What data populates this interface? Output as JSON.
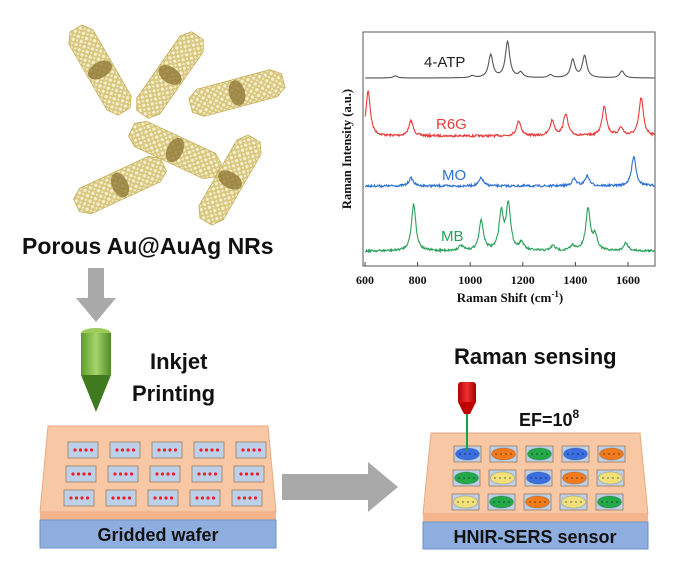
{
  "nanorods": {
    "label": "Porous Au@AuAg NRs"
  },
  "printing": {
    "label_line1": "Inkjet",
    "label_line2": "Printing"
  },
  "left_wafer": {
    "label": "Gridded wafer",
    "rows": 3,
    "cols": 5,
    "dot_color": "#e8202a"
  },
  "right_wafer": {
    "label": "HNIR-SERS sensor",
    "title": "Raman sensing",
    "ef_base": "EF=10",
    "ef_exp": "8",
    "cells": [
      [
        "blue",
        "orange",
        "green",
        "blue",
        "orange"
      ],
      [
        "green",
        "yellow",
        "blue",
        "orange",
        "yellow"
      ],
      [
        "yellow",
        "green",
        "orange",
        "yellow",
        "green"
      ]
    ],
    "colors": {
      "blue": "#3b6fe0",
      "orange": "#f07a1c",
      "green": "#23a84a",
      "yellow": "#f2e07a"
    }
  },
  "chart_data": {
    "type": "line",
    "xlabel": "Raman Shift (cm",
    "xlabel_sup": "-1",
    "xlabel_end": ")",
    "ylabel": "Raman Intensity (a.u.)",
    "xlim": [
      600,
      1700
    ],
    "xticks": [
      "600",
      "800",
      "1000",
      "1200",
      "1400",
      "1600"
    ],
    "grid": false,
    "series": [
      {
        "name": "4-ATP",
        "color": "#555555",
        "baseline": 0,
        "peaks": [
          [
            715,
            2
          ],
          [
            1008,
            2
          ],
          [
            1078,
            23
          ],
          [
            1142,
            36
          ],
          [
            1192,
            5
          ],
          [
            1305,
            3
          ],
          [
            1390,
            18
          ],
          [
            1435,
            22
          ],
          [
            1577,
            7
          ]
        ]
      },
      {
        "name": "R6G",
        "color": "#e83a3a",
        "baseline": 0,
        "peaks": [
          [
            612,
            45
          ],
          [
            775,
            15
          ],
          [
            1185,
            15
          ],
          [
            1312,
            15
          ],
          [
            1363,
            22
          ],
          [
            1510,
            30
          ],
          [
            1573,
            8
          ],
          [
            1650,
            38
          ]
        ]
      },
      {
        "name": "MO",
        "color": "#2a6fd6",
        "baseline": 0,
        "peaks": [
          [
            775,
            8
          ],
          [
            1042,
            8
          ],
          [
            1395,
            7
          ],
          [
            1445,
            10
          ],
          [
            1622,
            30
          ]
        ]
      },
      {
        "name": "MB",
        "color": "#2aa05a",
        "baseline": 0,
        "peaks": [
          [
            785,
            47
          ],
          [
            965,
            5
          ],
          [
            1042,
            30
          ],
          [
            1118,
            37
          ],
          [
            1145,
            46
          ],
          [
            1195,
            8
          ],
          [
            1315,
            5
          ],
          [
            1390,
            5
          ],
          [
            1448,
            42
          ],
          [
            1475,
            15
          ],
          [
            1592,
            8
          ]
        ]
      }
    ]
  }
}
